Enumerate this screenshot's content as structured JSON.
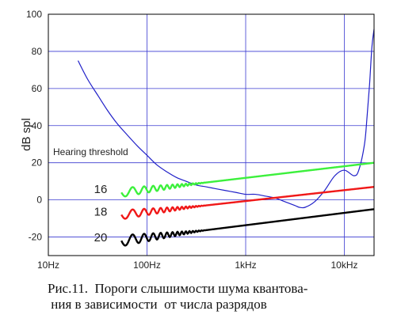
{
  "chart_data": {
    "type": "line",
    "ylabel": "dB spl",
    "xscale": "log",
    "xlim": [
      10,
      20000
    ],
    "ylim": [
      -30,
      100
    ],
    "x_ticks": [
      {
        "value": 10,
        "label": "10Hz"
      },
      {
        "value": 100,
        "label": "100Hz"
      },
      {
        "value": 1000,
        "label": "1kHz"
      },
      {
        "value": 10000,
        "label": "10kHz"
      }
    ],
    "y_ticks": [
      100,
      80,
      60,
      40,
      20,
      0,
      -20
    ],
    "grid": true,
    "annotation": "Hearing threshold",
    "series": [
      {
        "name": "Hearing threshold",
        "color": "#2020c8",
        "x": [
          20,
          25,
          32,
          40,
          50,
          63,
          80,
          100,
          125,
          160,
          200,
          250,
          315,
          400,
          500,
          630,
          800,
          1000,
          1250,
          1600,
          2000,
          2500,
          3150,
          3500,
          4000,
          5000,
          6300,
          8000,
          10000,
          12500,
          14000,
          16000,
          17000,
          18000,
          19000,
          20000
        ],
        "values": [
          75,
          65,
          56,
          48,
          41,
          35,
          29,
          24,
          19,
          15,
          12,
          10,
          8,
          7,
          6,
          5,
          4,
          3,
          3,
          2,
          1,
          -1,
          -3,
          -4,
          -4,
          -1,
          5,
          13,
          16,
          13,
          16,
          30,
          45,
          62,
          82,
          92
        ]
      },
      {
        "name": "16",
        "color": "#3cf03c",
        "x": [
          55,
          20000
        ],
        "start": 4,
        "end": 20,
        "ripple": {
          "x_from": 55,
          "x_to": 400,
          "amplitude": 2.5
        }
      },
      {
        "name": "18",
        "color": "#f01818",
        "x": [
          55,
          20000
        ],
        "start": -8,
        "end": 7,
        "ripple": {
          "x_from": 55,
          "x_to": 400,
          "amplitude": 2.5
        }
      },
      {
        "name": "20",
        "color": "#000000",
        "x": [
          55,
          20000
        ],
        "start": -22,
        "end": -5,
        "ripple": {
          "x_from": 55,
          "x_to": 400,
          "amplitude": 3
        }
      }
    ],
    "series_labels": [
      "16",
      "18",
      "20"
    ]
  },
  "caption": {
    "line1": "Рис.11.  Пороги слышимости шума квантова-",
    "line2": " ния в зависимости  от числа разрядов"
  }
}
